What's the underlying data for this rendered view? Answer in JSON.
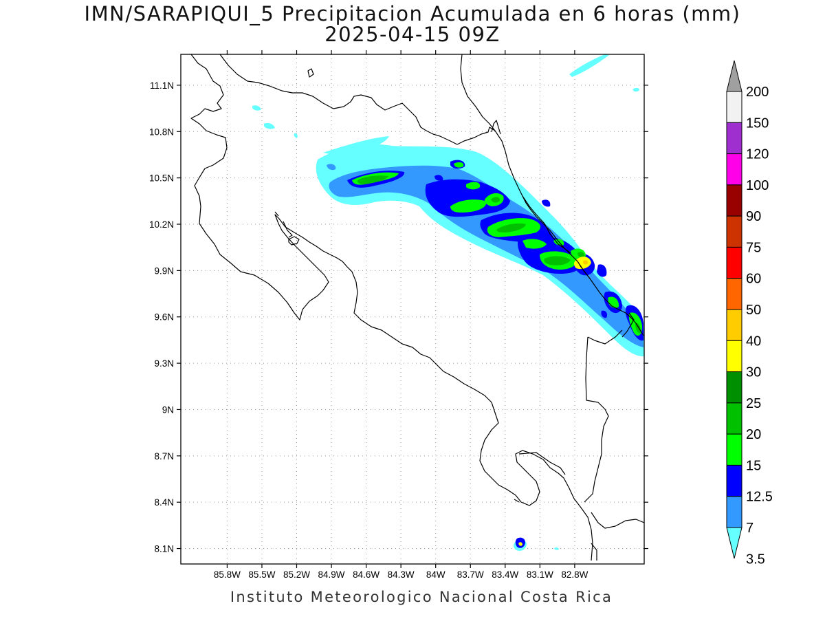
{
  "title": {
    "line1": "IMN/SARAPIQUI_5 Precipitacion Acumulada en 6 horas (mm)",
    "line2": "2025-04-15 09Z"
  },
  "credit": "Instituto Meteorologico Nacional Costa Rica",
  "map": {
    "lon_range": [
      -86.2,
      -82.2
    ],
    "lat_range": [
      8.0,
      11.3
    ],
    "lon_ticks": [
      {
        "value": -85.8,
        "label": "85.8W"
      },
      {
        "value": -85.5,
        "label": "85.5W"
      },
      {
        "value": -85.2,
        "label": "85.2W"
      },
      {
        "value": -84.9,
        "label": "84.9W"
      },
      {
        "value": -84.6,
        "label": "84.6W"
      },
      {
        "value": -84.3,
        "label": "84.3W"
      },
      {
        "value": -84.0,
        "label": "84W"
      },
      {
        "value": -83.7,
        "label": "83.7W"
      },
      {
        "value": -83.4,
        "label": "83.4W"
      },
      {
        "value": -83.1,
        "label": "83.1W"
      },
      {
        "value": -82.8,
        "label": "82.8W"
      }
    ],
    "lat_ticks": [
      {
        "value": 11.1,
        "label": "11.1N"
      },
      {
        "value": 10.8,
        "label": "10.8N"
      },
      {
        "value": 10.5,
        "label": "10.5N"
      },
      {
        "value": 10.2,
        "label": "10.2N"
      },
      {
        "value": 9.9,
        "label": "9.9N"
      },
      {
        "value": 9.6,
        "label": "9.6N"
      },
      {
        "value": 9.3,
        "label": "9.3N"
      },
      {
        "value": 9.0,
        "label": "9N"
      },
      {
        "value": 8.7,
        "label": "8.7N"
      },
      {
        "value": 8.4,
        "label": "8.4N"
      },
      {
        "value": 8.1,
        "label": "8.1N"
      }
    ],
    "grid": "dotted"
  },
  "legend": {
    "levels": [
      {
        "label": "200",
        "color": "#a0a0a0"
      },
      {
        "label": "150",
        "color": "#f2f2f2"
      },
      {
        "label": "120",
        "color": "#a02fcf"
      },
      {
        "label": "100",
        "color": "#ff00e8"
      },
      {
        "label": "90",
        "color": "#990000"
      },
      {
        "label": "75",
        "color": "#cc3300"
      },
      {
        "label": "60",
        "color": "#ff0000"
      },
      {
        "label": "50",
        "color": "#ff6600"
      },
      {
        "label": "40",
        "color": "#ffcc00"
      },
      {
        "label": "30",
        "color": "#ffff00"
      },
      {
        "label": "25",
        "color": "#008f00"
      },
      {
        "label": "20",
        "color": "#00c000"
      },
      {
        "label": "15",
        "color": "#00ff00"
      },
      {
        "label": "12.5",
        "color": "#0000ff"
      },
      {
        "label": "7",
        "color": "#3399ff"
      },
      {
        "label": "3.5",
        "color": "#66ffff"
      }
    ]
  },
  "colors": {
    "precip_3_5": "#66ffff",
    "precip_7": "#3399ff",
    "precip_12_5": "#0000ff",
    "precip_15": "#00ff00",
    "precip_20": "#00c000",
    "precip_30": "#ffff00",
    "precip_40": "#ffcc00",
    "coastline": "#000000",
    "grid": "#999999"
  }
}
